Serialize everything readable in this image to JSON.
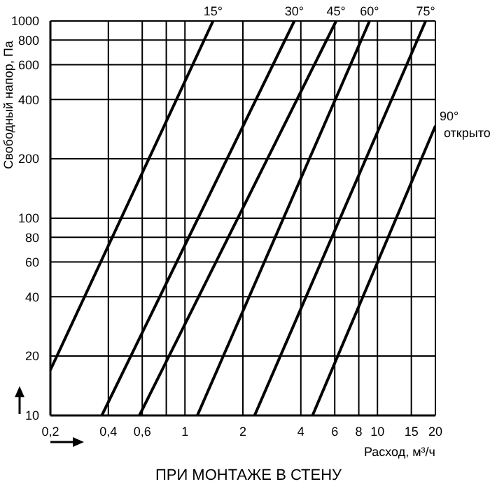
{
  "chart_data": {
    "type": "line",
    "title": "ПРИ МОНТАЖЕ В СТЕНУ",
    "xlabel": "Расход, м³/ч",
    "ylabel": "Свободный напор, Па",
    "log": "xy",
    "grid": true,
    "marker": "none",
    "line_style": "solid",
    "xlim": [
      0.2,
      20
    ],
    "ylim": [
      10,
      1000
    ],
    "xticks": [
      {
        "value": 0.2,
        "label": "0,2"
      },
      {
        "value": 0.4,
        "label": "0,4"
      },
      {
        "value": 0.6,
        "label": "0,6"
      },
      {
        "value": 0.8,
        "label": null
      },
      1,
      2,
      4,
      6,
      8,
      10,
      15,
      20
    ],
    "yticks": [
      10,
      20,
      40,
      60,
      80,
      100,
      200,
      400,
      600,
      800,
      1000
    ],
    "series": [
      {
        "name": "15°",
        "color": "#000000",
        "x": [
          0.2,
          1.4
        ],
        "values": [
          17,
          1000
        ]
      },
      {
        "name": "30°",
        "color": "#000000",
        "x": [
          0.37,
          3.7
        ],
        "values": [
          10,
          1000
        ]
      },
      {
        "name": "45°",
        "color": "#000000",
        "x": [
          0.58,
          6.1
        ],
        "values": [
          10,
          1000
        ]
      },
      {
        "name": "60°",
        "color": "#000000",
        "x": [
          1.16,
          9.1
        ],
        "values": [
          10,
          1000
        ]
      },
      {
        "name": "75°",
        "color": "#000000",
        "x": [
          2.3,
          17.8
        ],
        "values": [
          10,
          1000
        ]
      },
      {
        "name": "90° открыто",
        "color": "#000000",
        "x": [
          4.6,
          20
        ],
        "values": [
          10,
          294
        ]
      }
    ]
  }
}
